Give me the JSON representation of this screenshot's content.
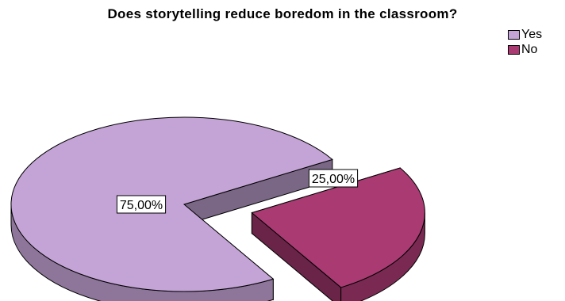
{
  "chart_data": {
    "type": "pie",
    "title": "Does storytelling reduce boredom in the classroom?",
    "categories": [
      "Yes",
      "No"
    ],
    "values": [
      75,
      25
    ],
    "data_labels": [
      "75,00%",
      "25,00%"
    ],
    "colors": [
      "#c4a4d6",
      "#a93a72"
    ],
    "legend_position": "top-right",
    "exploded": true,
    "three_d": true
  }
}
